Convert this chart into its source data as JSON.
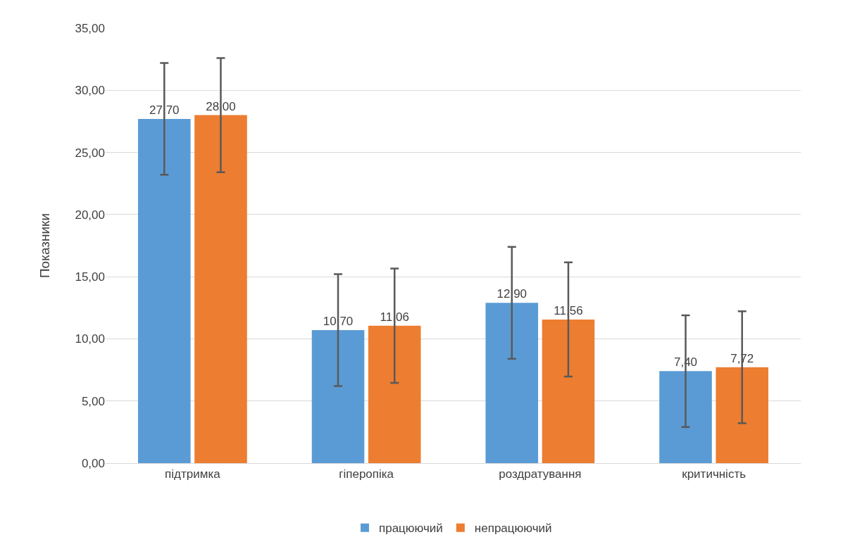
{
  "chart_data": {
    "type": "bar",
    "ylabel": "Показники",
    "categories": [
      "підтримка",
      "гіперопіка",
      "роздратування",
      "критичність"
    ],
    "series": [
      {
        "name": "працюючий",
        "color": "#5b9bd5",
        "values": [
          27.7,
          10.7,
          12.9,
          7.4
        ],
        "value_labels": [
          "27,70",
          "10,70",
          "12,90",
          "7,40"
        ],
        "errors": [
          4.5,
          4.5,
          4.5,
          4.5
        ]
      },
      {
        "name": "непрацюючий",
        "color": "#ed7d31",
        "values": [
          28.0,
          11.06,
          11.56,
          7.72
        ],
        "value_labels": [
          "28,00",
          "11,06",
          "11,56",
          "7,72"
        ],
        "errors": [
          4.6,
          4.6,
          4.6,
          4.5
        ]
      }
    ],
    "ylim": [
      0,
      35
    ],
    "yticks": [
      {
        "value": 0,
        "label": "0,00"
      },
      {
        "value": 5,
        "label": "5,00"
      },
      {
        "value": 10,
        "label": "10,00"
      },
      {
        "value": 15,
        "label": "15,00"
      },
      {
        "value": 20,
        "label": "20,00"
      },
      {
        "value": 25,
        "label": "25,00"
      },
      {
        "value": 30,
        "label": "30,00"
      },
      {
        "value": 35,
        "label": "35,00"
      }
    ],
    "grid": "y",
    "legend": "bottom"
  }
}
